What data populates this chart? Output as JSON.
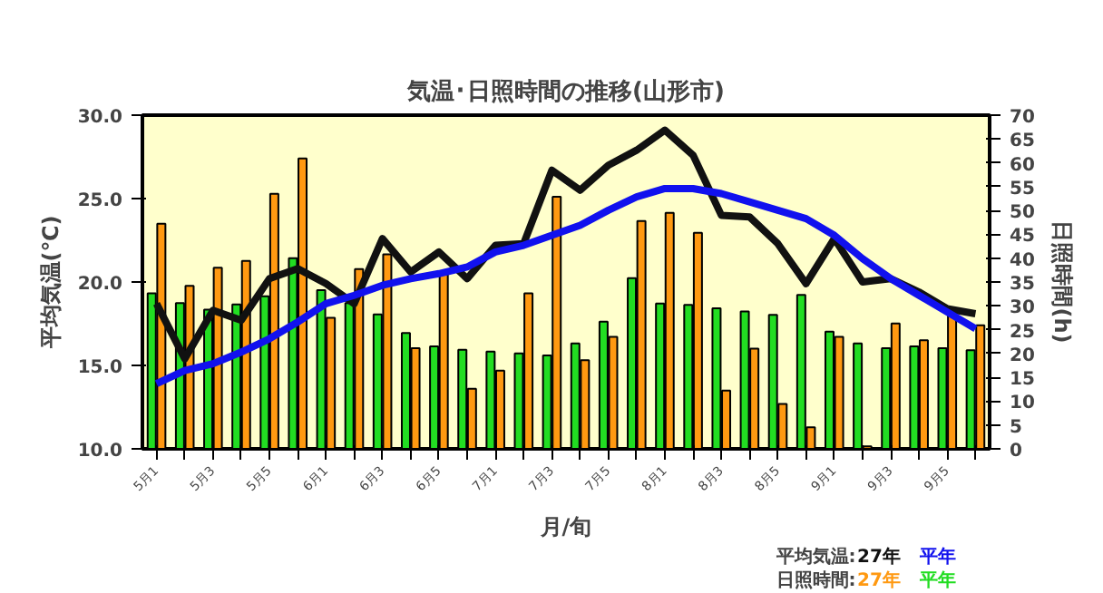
{
  "chart_data": {
    "type": "bar",
    "title": "気温･日照時間の推移(山形市)",
    "xlabel": "月/旬",
    "ylabel": "平均気温(℃)",
    "y2label": "日照時間(h)",
    "categories": [
      "5月1",
      null,
      "5月3",
      null,
      "5月5",
      null,
      "6月1",
      null,
      "6月3",
      null,
      "6月5",
      null,
      "7月1",
      null,
      "7月3",
      null,
      "7月5",
      null,
      "8月1",
      null,
      "8月3",
      null,
      "8月5",
      null,
      "9月1",
      null,
      "9月3",
      null,
      "9月5",
      null
    ],
    "series": [
      {
        "name": "平年",
        "axis": "y2",
        "color": "#22dd22",
        "values": [
          32.6,
          30.6,
          29.2,
          30.3,
          32.0,
          40.0,
          33.3,
          30.6,
          28.2,
          24.3,
          21.5,
          20.8,
          20.4,
          20.0,
          19.6,
          22.1,
          26.7,
          35.8,
          30.5,
          30.2,
          29.5,
          28.8,
          28.1,
          32.3,
          24.6,
          22.1,
          21.1,
          21.5,
          21.1,
          20.7
        ]
      },
      {
        "name": "27年",
        "axis": "y2",
        "color": "#ff9911",
        "values": [
          47.2,
          34.2,
          38.0,
          39.4,
          53.5,
          60.9,
          27.5,
          37.7,
          40.8,
          21.1,
          36.5,
          12.6,
          16.4,
          32.6,
          52.9,
          18.6,
          23.5,
          47.8,
          49.5,
          45.3,
          12.2,
          21.0,
          9.4,
          4.5,
          23.5,
          0.5,
          26.3,
          22.8,
          28.5,
          25.9
        ]
      },
      {
        "name": "27年",
        "type": "line",
        "color": "#111111",
        "values": [
          18.7,
          15.4,
          18.3,
          17.7,
          20.2,
          20.8,
          19.9,
          18.7,
          22.6,
          20.6,
          21.8,
          20.2,
          22.2,
          22.3,
          26.7,
          25.5,
          27.0,
          27.9,
          29.1,
          27.6,
          24.0,
          23.9,
          22.3,
          19.9,
          22.6,
          20.0,
          20.2,
          19.4,
          18.4,
          18.1
        ]
      },
      {
        "name": "平年",
        "type": "line",
        "color": "#1111ee",
        "values": [
          13.9,
          14.7,
          15.1,
          15.8,
          16.6,
          17.6,
          18.7,
          19.2,
          19.8,
          20.2,
          20.5,
          20.9,
          21.8,
          22.2,
          22.8,
          23.4,
          24.3,
          25.1,
          25.6,
          25.6,
          25.3,
          24.8,
          24.3,
          23.8,
          22.8,
          21.4,
          20.2,
          19.2,
          18.2,
          17.2
        ]
      }
    ],
    "ylim": [
      10,
      30
    ],
    "yticks": [
      {
        "value": 10,
        "label": "10.0"
      },
      {
        "value": 15,
        "label": "15.0"
      },
      {
        "value": 20,
        "label": "20.0"
      },
      {
        "value": 25,
        "label": "25.0"
      },
      {
        "value": 30,
        "label": "30.0"
      }
    ],
    "y2lim": [
      0,
      70
    ],
    "y2ticks": [
      0,
      5,
      10,
      15,
      20,
      25,
      30,
      35,
      40,
      45,
      50,
      55,
      60,
      65,
      70
    ],
    "annotations": [
      "平均気温:",
      "日照時間:"
    ],
    "grid": false
  }
}
